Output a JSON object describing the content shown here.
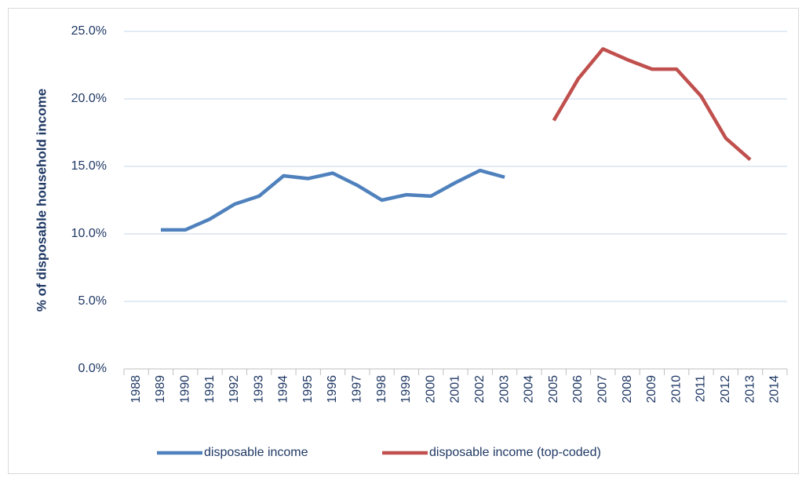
{
  "chart_data": {
    "type": "line",
    "y_label": "% of disposable household income",
    "categories": [
      "1988",
      "1989",
      "1990",
      "1991",
      "1992",
      "1993",
      "1994",
      "1995",
      "1996",
      "1997",
      "1998",
      "1999",
      "2000",
      "2001",
      "2002",
      "2003",
      "2004",
      "2005",
      "2006",
      "2007",
      "2008",
      "2009",
      "2010",
      "2011",
      "2012",
      "2013",
      "2014"
    ],
    "series": [
      {
        "name": "disposable income",
        "color": "#4f81bd",
        "values": [
          null,
          10.3,
          10.3,
          11.1,
          12.2,
          12.8,
          14.3,
          14.1,
          14.5,
          13.6,
          12.5,
          12.9,
          12.8,
          13.8,
          14.7,
          14.2,
          null,
          null,
          null,
          null,
          null,
          null,
          null,
          null,
          null,
          null,
          null
        ]
      },
      {
        "name": "disposable income (top-coded)",
        "color": "#c0504d",
        "values": [
          null,
          null,
          null,
          null,
          null,
          null,
          null,
          null,
          null,
          null,
          null,
          null,
          null,
          null,
          null,
          null,
          null,
          18.4,
          21.5,
          23.7,
          22.9,
          22.2,
          22.2,
          20.2,
          17.1,
          15.5,
          null
        ]
      }
    ],
    "ylim": [
      0,
      25
    ],
    "yticks": [
      {
        "value": 0,
        "label": "0.0%"
      },
      {
        "value": 5,
        "label": "5.0%"
      },
      {
        "value": 10,
        "label": "10.0%"
      },
      {
        "value": 15,
        "label": "15.0%"
      },
      {
        "value": 20,
        "label": "20.0%"
      },
      {
        "value": 25,
        "label": "25.0%"
      }
    ],
    "grid": true,
    "legend": "bottom"
  }
}
